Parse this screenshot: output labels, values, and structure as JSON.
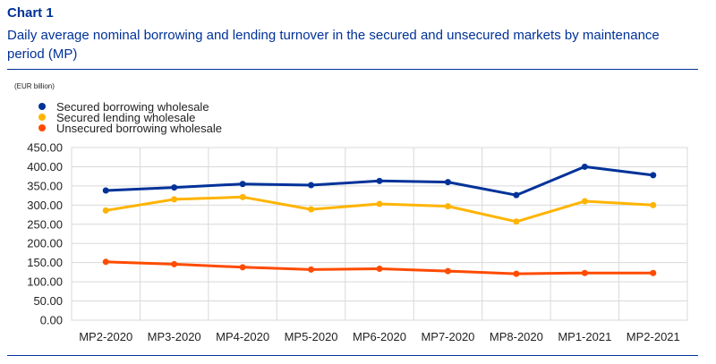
{
  "header": {
    "label": "Chart 1",
    "title": "Daily average nominal borrowing and lending turnover in the secured and unsecured markets by maintenance period (MP)"
  },
  "chart_data": {
    "type": "line",
    "unit_label": "(EUR billion)",
    "categories": [
      "MP2-2020",
      "MP3-2020",
      "MP4-2020",
      "MP5-2020",
      "MP6-2020",
      "MP7-2020",
      "MP8-2020",
      "MP1-2021",
      "MP2-2021"
    ],
    "y_ticks": [
      "0.00",
      "50.00",
      "100.00",
      "150.00",
      "200.00",
      "250.00",
      "300.00",
      "350.00",
      "400.00",
      "450.00"
    ],
    "ylim": [
      0,
      450
    ],
    "grid": true,
    "legend_position": "top-left",
    "series": [
      {
        "name": "Secured borrowing wholesale",
        "color": "#003299",
        "values": [
          338,
          346,
          355,
          352,
          363,
          360,
          326,
          400,
          378
        ]
      },
      {
        "name": "Secured lending wholesale",
        "color": "#FFB400",
        "values": [
          286,
          315,
          321,
          289,
          303,
          297,
          257,
          310,
          300
        ]
      },
      {
        "name": "Unsecured borrowing wholesale",
        "color": "#FF4B00",
        "values": [
          152,
          146,
          138,
          132,
          134,
          128,
          121,
          123,
          123
        ]
      }
    ]
  }
}
